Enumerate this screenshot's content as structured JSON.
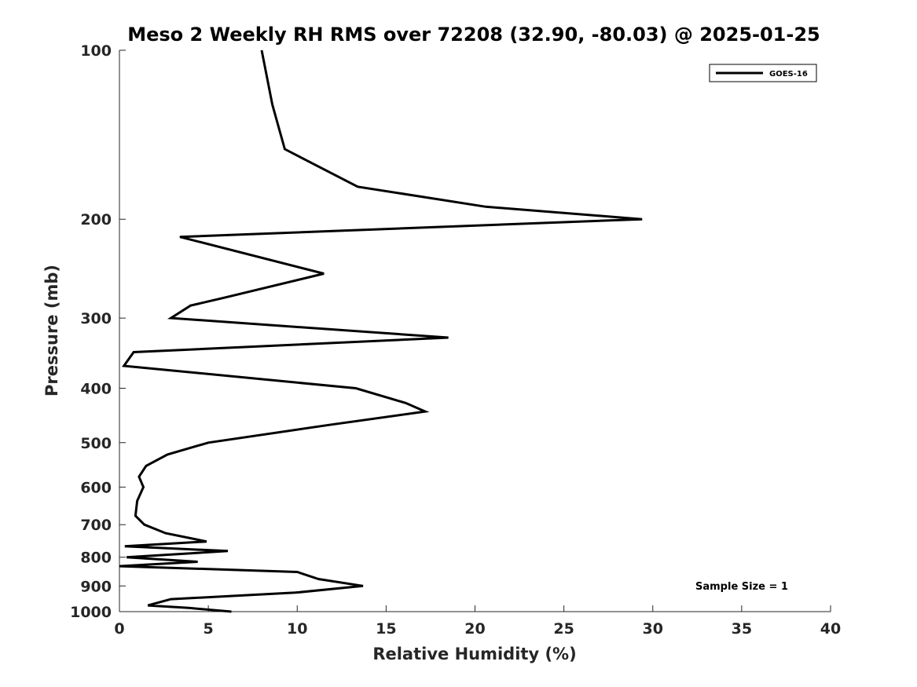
{
  "chart_data": {
    "type": "line",
    "title": "Meso 2 Weekly RH RMS over 72208 (32.90, -80.03) @ 2025-01-25",
    "xlabel": "Relative Humidity (%)",
    "ylabel": "Pressure (mb)",
    "xlim": [
      0,
      40
    ],
    "ylim": [
      100,
      1000
    ],
    "y_scale": "log",
    "y_reversed": true,
    "x_ticks": [
      "0",
      "5",
      "10",
      "15",
      "20",
      "25",
      "30",
      "35",
      "40"
    ],
    "y_ticks": [
      "100",
      "200",
      "300",
      "400",
      "500",
      "600",
      "700",
      "800",
      "900",
      "1000"
    ],
    "grid": false,
    "legend_position": "top-right",
    "annotation": "Sample Size = 1",
    "series": [
      {
        "name": "GOES-16",
        "color": "#000000",
        "points": [
          [
            8.0,
            100
          ],
          [
            8.6,
            125
          ],
          [
            9.3,
            150
          ],
          [
            13.4,
            175
          ],
          [
            20.6,
            190
          ],
          [
            29.4,
            200
          ],
          [
            3.4,
            215
          ],
          [
            11.5,
            250
          ],
          [
            6.1,
            275
          ],
          [
            4.0,
            285
          ],
          [
            2.9,
            300
          ],
          [
            18.5,
            325
          ],
          [
            0.8,
            345
          ],
          [
            0.25,
            365
          ],
          [
            13.3,
            400
          ],
          [
            16.1,
            425
          ],
          [
            17.2,
            440
          ],
          [
            11.8,
            465
          ],
          [
            5.0,
            500
          ],
          [
            2.7,
            525
          ],
          [
            1.5,
            550
          ],
          [
            1.1,
            575
          ],
          [
            1.35,
            600
          ],
          [
            1.0,
            635
          ],
          [
            0.9,
            675
          ],
          [
            1.4,
            700
          ],
          [
            2.6,
            725
          ],
          [
            4.9,
            750
          ],
          [
            0.3,
            765
          ],
          [
            6.1,
            780
          ],
          [
            0.4,
            800
          ],
          [
            4.4,
            815
          ],
          [
            0.0,
            830
          ],
          [
            10.0,
            850
          ],
          [
            11.2,
            875
          ],
          [
            13.7,
            900
          ],
          [
            9.9,
            925
          ],
          [
            2.9,
            950
          ],
          [
            1.6,
            975
          ],
          [
            3.9,
            985
          ],
          [
            6.3,
            1000
          ]
        ]
      }
    ]
  }
}
